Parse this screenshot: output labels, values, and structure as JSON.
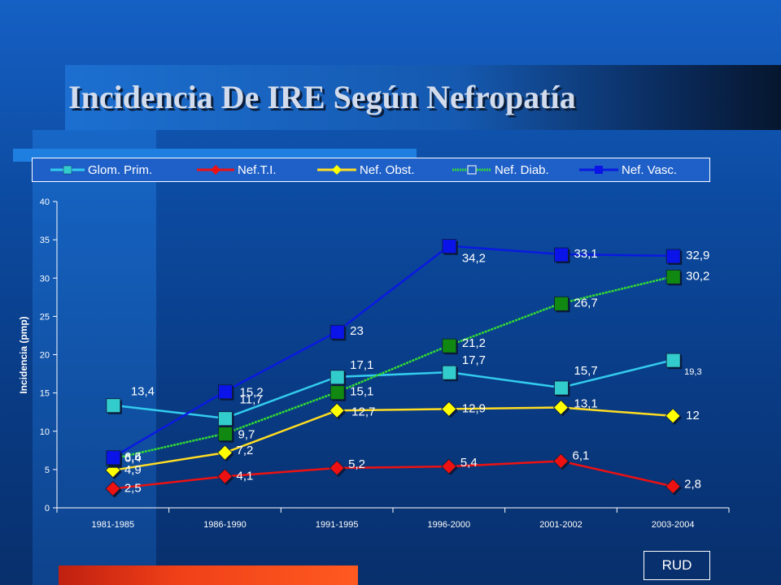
{
  "slide": {
    "title": "Incidencia De IRE Según Nefropatía",
    "badge": "RUD"
  },
  "chart_data": {
    "type": "line",
    "categories": [
      "1981-1985",
      "1986-1990",
      "1991-1995",
      "1996-2000",
      "2001-2002",
      "2003-2004"
    ],
    "ylabel": "Incidencia  (pmp)",
    "xlabel": "",
    "ylim": [
      0,
      40
    ],
    "yticks": [
      0,
      5,
      10,
      15,
      20,
      25,
      30,
      35,
      40
    ],
    "grid": false,
    "legend_position": "top",
    "series": [
      {
        "name": "Glom. Prim.",
        "color": "#33ccee",
        "marker": "square",
        "markerColor": "#33cccc",
        "values": [
          13.4,
          11.7,
          17.1,
          17.7,
          15.7,
          19.3
        ],
        "labels": [
          "13,4",
          "11,7",
          "17,1",
          "17,7",
          "15,7",
          "19,3"
        ]
      },
      {
        "name": "Nef.T.I.",
        "color": "#ee1111",
        "marker": "diamond",
        "markerColor": "#ee1111",
        "values": [
          2.5,
          4.1,
          5.2,
          5.4,
          6.1,
          2.8
        ],
        "labels": [
          "2,5",
          "4,1",
          "5,2",
          "5,4",
          "6,1",
          "2,8"
        ]
      },
      {
        "name": "Nef. Obst.",
        "color": "#ffdd22",
        "marker": "diamond",
        "markerColor": "#ffff00",
        "values": [
          4.9,
          7.2,
          12.7,
          12.9,
          13.1,
          12
        ],
        "labels": [
          "4,9",
          "7,2",
          "12,7",
          "12,9",
          "13,1",
          "12"
        ]
      },
      {
        "name": "Nef. Diab.",
        "color": "#33dd33",
        "marker": "square",
        "markerColor": "#118811",
        "values": [
          6.4,
          9.7,
          15.1,
          21.2,
          26.7,
          30.2
        ],
        "labels": [
          "6,4",
          "9,7",
          "15,1",
          "21,2",
          "26,7",
          "30,2"
        ]
      },
      {
        "name": "Nef. Vasc.",
        "color": "#0a1ae0",
        "marker": "square",
        "markerColor": "#0a14e8",
        "values": [
          6.6,
          15.2,
          23,
          34.2,
          33.1,
          32.9
        ],
        "labels": [
          "6,6",
          "15,2",
          "23",
          "34,2",
          "33,1",
          "32,9"
        ]
      }
    ]
  }
}
